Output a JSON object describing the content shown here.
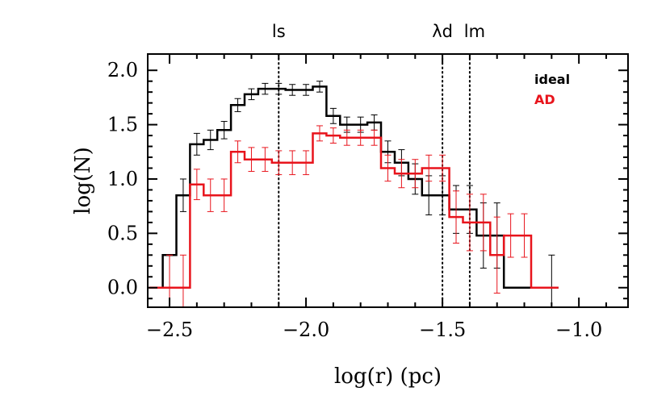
{
  "chart_data": {
    "type": "line",
    "step": true,
    "xlabel": "log(r) (pc)",
    "ylabel": "log(N)",
    "xlim": [
      -2.58,
      -0.82
    ],
    "ylim": [
      -0.18,
      2.15
    ],
    "x_ticks": [
      -2.5,
      -2.0,
      -1.5,
      -1.0
    ],
    "x_tick_labels": [
      "−2.5",
      "−2.0",
      "−1.5",
      "−1.0"
    ],
    "y_ticks": [
      0.0,
      0.5,
      1.0,
      1.5,
      2.0
    ],
    "y_tick_labels": [
      "0.0",
      "0.5",
      "1.0",
      "1.5",
      "2.0"
    ],
    "grid": false,
    "legend_position": "top-right",
    "vertical_markers": [
      {
        "label": "ls",
        "x": -2.1
      },
      {
        "label": "λd",
        "x": -1.5
      },
      {
        "label": "lm",
        "x": -1.4
      }
    ],
    "bin_width": 0.05,
    "series": [
      {
        "name": "ideal",
        "color": "#000000",
        "bin_centers": [
          -2.55,
          -2.5,
          -2.45,
          -2.4,
          -2.35,
          -2.3,
          -2.25,
          -2.2,
          -2.15,
          -2.1,
          -2.05,
          -2.0,
          -1.95,
          -1.9,
          -1.85,
          -1.8,
          -1.75,
          -1.7,
          -1.65,
          -1.6,
          -1.55,
          -1.5,
          -1.45,
          -1.4,
          -1.35,
          -1.3,
          -1.25,
          -1.2,
          -1.15,
          -1.1
        ],
        "values": [
          0.0,
          0.3,
          0.85,
          1.32,
          1.36,
          1.45,
          1.68,
          1.78,
          1.83,
          1.83,
          1.82,
          1.82,
          1.85,
          1.58,
          1.5,
          1.5,
          1.52,
          1.25,
          1.15,
          1.0,
          0.85,
          0.85,
          0.72,
          0.72,
          0.48,
          0.48,
          0.0,
          0.0,
          0.0,
          0.0
        ],
        "errors": [
          0.0,
          0.0,
          0.15,
          0.1,
          0.09,
          0.08,
          0.06,
          0.05,
          0.05,
          0.05,
          0.05,
          0.05,
          0.05,
          0.07,
          0.07,
          0.07,
          0.07,
          0.1,
          0.12,
          0.14,
          0.18,
          0.18,
          0.22,
          0.22,
          0.3,
          0.3,
          0.0,
          0.0,
          0.0,
          0.3
        ]
      },
      {
        "name": "AD",
        "color": "#e8141c",
        "bin_centers": [
          -2.55,
          -2.5,
          -2.45,
          -2.4,
          -2.35,
          -2.3,
          -2.25,
          -2.2,
          -2.15,
          -2.1,
          -2.05,
          -2.0,
          -1.95,
          -1.9,
          -1.85,
          -1.8,
          -1.75,
          -1.7,
          -1.65,
          -1.6,
          -1.55,
          -1.5,
          -1.45,
          -1.4,
          -1.35,
          -1.3,
          -1.25,
          -1.2,
          -1.15,
          -1.1
        ],
        "values": [
          0.0,
          0.0,
          0.0,
          0.95,
          0.85,
          0.85,
          1.25,
          1.18,
          1.18,
          1.15,
          1.15,
          1.15,
          1.42,
          1.4,
          1.38,
          1.38,
          1.38,
          1.1,
          1.05,
          1.05,
          1.1,
          1.1,
          0.65,
          0.6,
          0.6,
          0.3,
          0.48,
          0.48,
          0.0,
          0.0
        ],
        "errors": [
          0.0,
          0.3,
          0.3,
          0.14,
          0.15,
          0.15,
          0.1,
          0.11,
          0.11,
          0.11,
          0.11,
          0.11,
          0.07,
          0.07,
          0.07,
          0.07,
          0.07,
          0.12,
          0.13,
          0.13,
          0.12,
          0.12,
          0.24,
          0.26,
          0.26,
          0.35,
          0.2,
          0.2,
          0.0,
          0.0
        ]
      }
    ]
  }
}
